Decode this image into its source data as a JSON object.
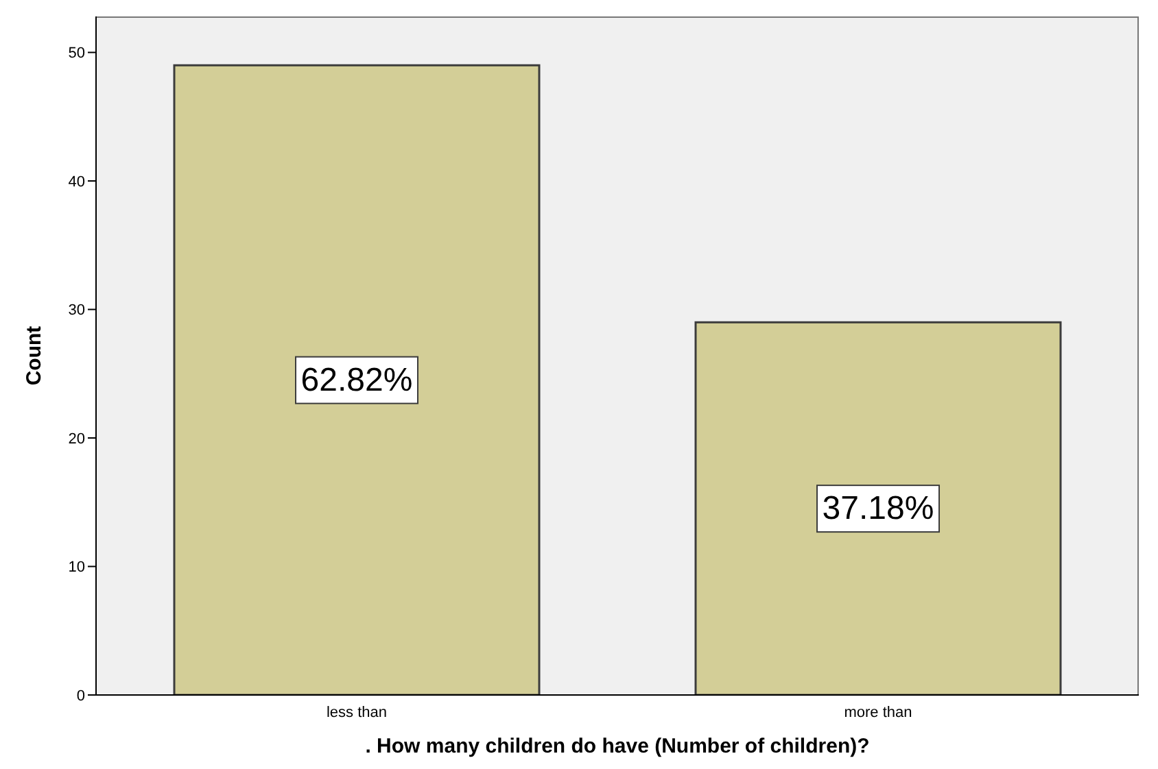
{
  "chart_data": {
    "type": "bar",
    "xlabel": ". How many children do have (Number of children)?",
    "ylabel": "Count",
    "categories": [
      "less than",
      "more than"
    ],
    "values": [
      49,
      29
    ],
    "color": "#d3ce97",
    "ylim": [
      0,
      52.8
    ],
    "yticks": [
      0,
      10,
      20,
      30,
      40,
      50
    ],
    "annotations": [
      "62.82%",
      "37.18%"
    ]
  }
}
